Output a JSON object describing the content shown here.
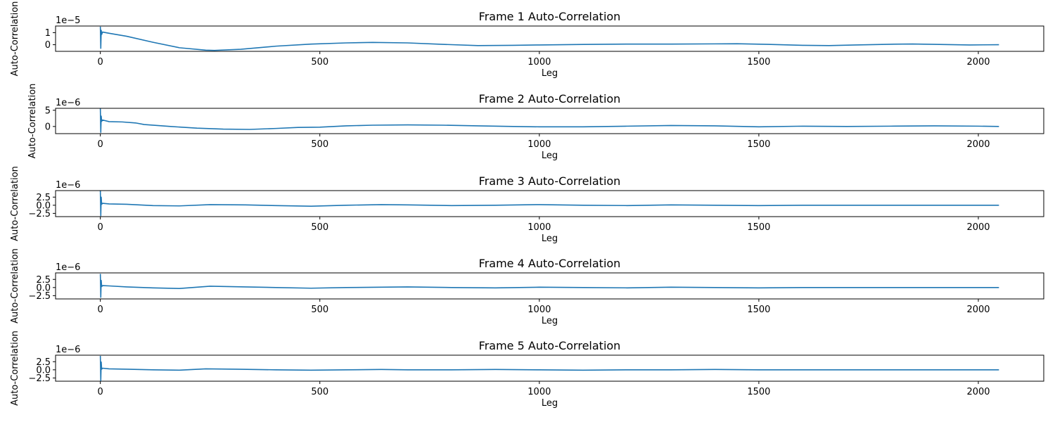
{
  "chart_data": [
    {
      "type": "line",
      "title": "Frame 1 Auto-Correlation",
      "xlabel": "Leg",
      "ylabel": "Auto-Correlation",
      "xlim": [
        -102,
        2149
      ],
      "ylim": [
        -0.55,
        1.55
      ],
      "offset_text": "1e−5",
      "xticks": [
        0,
        500,
        1000,
        1500,
        2000
      ],
      "yticks": [
        {
          "v": 1,
          "label": "1"
        },
        {
          "v": 0,
          "label": "0"
        }
      ],
      "series": [
        {
          "color": "#1f77b4",
          "x": [
            0,
            1,
            2,
            3,
            5,
            20,
            60,
            120,
            180,
            240,
            260,
            320,
            400,
            480,
            560,
            620,
            700,
            780,
            860,
            940,
            1000,
            1100,
            1200,
            1300,
            1400,
            1450,
            1520,
            1600,
            1660,
            1720,
            1800,
            1850,
            1900,
            1980,
            2047
          ],
          "y": [
            1.5,
            -0.3,
            1.2,
            0.85,
            1.05,
            0.95,
            0.7,
            0.2,
            -0.25,
            -0.45,
            -0.47,
            -0.38,
            -0.12,
            0.05,
            0.15,
            0.19,
            0.15,
            0.03,
            -0.07,
            -0.05,
            -0.02,
            0.02,
            0.05,
            0.05,
            0.07,
            0.08,
            0.03,
            -0.05,
            -0.07,
            -0.02,
            0.04,
            0.06,
            0.03,
            -0.02,
            0.0
          ]
        }
      ]
    },
    {
      "type": "line",
      "title": "Frame 2 Auto-Correlation",
      "xlabel": "Leg",
      "ylabel": "Auto-Correlation",
      "xlim": [
        -102,
        2149
      ],
      "ylim": [
        -2.2,
        5.6
      ],
      "offset_text": "1e−6",
      "xticks": [
        0,
        500,
        1000,
        1500,
        2000
      ],
      "yticks": [
        {
          "v": 5,
          "label": "5"
        },
        {
          "v": 0,
          "label": "0"
        }
      ],
      "series": [
        {
          "color": "#1f77b4",
          "x": [
            0,
            1,
            2,
            3,
            5,
            20,
            50,
            80,
            100,
            160,
            220,
            280,
            340,
            400,
            450,
            500,
            560,
            620,
            700,
            780,
            860,
            940,
            1000,
            1100,
            1200,
            1300,
            1400,
            1500,
            1600,
            1700,
            1800,
            1900,
            2000,
            2047
          ],
          "y": [
            5.5,
            -1.8,
            3.2,
            1.6,
            2.0,
            1.5,
            1.4,
            1.1,
            0.6,
            0.0,
            -0.5,
            -0.8,
            -0.9,
            -0.6,
            -0.3,
            -0.2,
            0.2,
            0.4,
            0.5,
            0.4,
            0.2,
            0.0,
            -0.1,
            -0.1,
            0.1,
            0.3,
            0.2,
            -0.1,
            0.1,
            0.0,
            0.1,
            0.2,
            0.1,
            0.0
          ]
        }
      ]
    },
    {
      "type": "line",
      "title": "Frame 3 Auto-Correlation",
      "xlabel": "Leg",
      "ylabel": "Auto-Correlation",
      "xlim": [
        -102,
        2149
      ],
      "ylim": [
        -3.5,
        4.5
      ],
      "offset_text": "1e−6",
      "xticks": [
        0,
        500,
        1000,
        1500,
        2000
      ],
      "yticks": [
        {
          "v": 2.5,
          "label": "2.5"
        },
        {
          "v": 0,
          "label": "0.0"
        },
        {
          "v": -2.5,
          "label": "−2.5"
        }
      ],
      "series": [
        {
          "color": "#1f77b4",
          "x": [
            0,
            1,
            2,
            3,
            5,
            20,
            60,
            120,
            180,
            250,
            330,
            400,
            480,
            560,
            640,
            700,
            800,
            900,
            1000,
            1100,
            1200,
            1300,
            1400,
            1500,
            1600,
            1700,
            1800,
            1900,
            2000,
            2047
          ],
          "y": [
            4.4,
            -3.2,
            2.5,
            0.3,
            0.6,
            0.4,
            0.3,
            -0.1,
            -0.2,
            0.2,
            0.1,
            -0.1,
            -0.3,
            0.0,
            0.2,
            0.1,
            -0.1,
            0.0,
            0.2,
            0.0,
            -0.1,
            0.1,
            0.0,
            -0.1,
            0.0,
            0.0,
            0.0,
            0.0,
            0.0,
            0.0
          ]
        }
      ]
    },
    {
      "type": "line",
      "title": "Frame 4 Auto-Correlation",
      "xlabel": "Leg",
      "ylabel": "Auto-Correlation",
      "xlim": [
        -102,
        2149
      ],
      "ylim": [
        -3.5,
        4.5
      ],
      "offset_text": "1e−6",
      "xticks": [
        0,
        500,
        1000,
        1500,
        2000
      ],
      "yticks": [
        {
          "v": 2.5,
          "label": "2.5"
        },
        {
          "v": 0,
          "label": "0.0"
        },
        {
          "v": -2.5,
          "label": "−2.5"
        }
      ],
      "series": [
        {
          "color": "#1f77b4",
          "x": [
            0,
            1,
            2,
            3,
            5,
            20,
            60,
            120,
            180,
            250,
            330,
            400,
            480,
            560,
            640,
            700,
            800,
            900,
            1000,
            1100,
            1200,
            1300,
            1400,
            1500,
            1600,
            1700,
            1800,
            1900,
            2000,
            2047
          ],
          "y": [
            4.2,
            -3.0,
            2.2,
            0.3,
            0.6,
            0.5,
            0.2,
            -0.1,
            -0.3,
            0.4,
            0.2,
            0.0,
            -0.2,
            0.0,
            0.1,
            0.2,
            0.0,
            -0.1,
            0.1,
            0.0,
            -0.1,
            0.1,
            0.0,
            -0.1,
            0.0,
            0.0,
            0.0,
            0.0,
            0.0,
            0.0
          ]
        }
      ]
    },
    {
      "type": "line",
      "title": "Frame 5 Auto-Correlation",
      "xlabel": "Leg",
      "ylabel": "Auto-Correlation",
      "xlim": [
        -102,
        2149
      ],
      "ylim": [
        -3.5,
        4.5
      ],
      "offset_text": "1e−6",
      "xticks": [
        0,
        500,
        1000,
        1500,
        2000
      ],
      "yticks": [
        {
          "v": 2.5,
          "label": "2.5"
        },
        {
          "v": 0,
          "label": "0.0"
        },
        {
          "v": -2.5,
          "label": "−2.5"
        }
      ],
      "series": [
        {
          "color": "#1f77b4",
          "x": [
            0,
            1,
            2,
            3,
            5,
            20,
            60,
            120,
            180,
            240,
            310,
            400,
            480,
            560,
            640,
            700,
            800,
            900,
            1000,
            1100,
            1200,
            1300,
            1400,
            1500,
            1600,
            1700,
            1800,
            1900,
            2000,
            2047
          ],
          "y": [
            4.3,
            -3.3,
            2.4,
            0.2,
            0.5,
            0.3,
            0.2,
            0.0,
            -0.1,
            0.3,
            0.2,
            0.0,
            -0.1,
            0.0,
            0.1,
            0.0,
            0.0,
            0.1,
            0.0,
            -0.1,
            0.0,
            0.0,
            0.1,
            0.0,
            0.0,
            0.0,
            0.0,
            0.0,
            0.0,
            0.0
          ]
        }
      ]
    }
  ]
}
